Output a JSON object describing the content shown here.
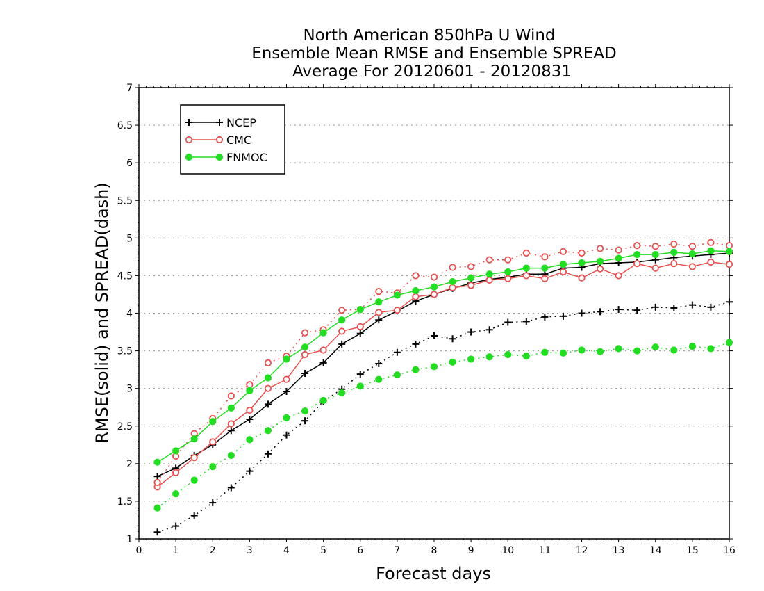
{
  "chart_data": {
    "type": "line",
    "title_lines": [
      "North American 850hPa U Wind",
      "Ensemble Mean RMSE and Ensemble SPREAD",
      "Average For 20120601 - 20120831"
    ],
    "xlabel": "Forecast days",
    "ylabel": "RMSE(solid) and SPREAD(dash)",
    "xlim": [
      0,
      16
    ],
    "ylim": [
      1,
      7
    ],
    "x_ticks": [
      0,
      1,
      2,
      3,
      4,
      5,
      6,
      7,
      8,
      9,
      10,
      11,
      12,
      13,
      14,
      15,
      16
    ],
    "y_ticks": [
      1,
      1.5,
      2,
      2.5,
      3,
      3.5,
      4,
      4.5,
      5,
      5.5,
      6,
      6.5,
      7
    ],
    "x_tick_labels": [
      "0",
      "1",
      "2",
      "3",
      "4",
      "5",
      "6",
      "7",
      "8",
      "9",
      "10",
      "11",
      "12",
      "13",
      "14",
      "15",
      "16"
    ],
    "y_tick_labels": [
      "1",
      "1.5",
      "2",
      "2.5",
      "3",
      "3.5",
      "4",
      "4.5",
      "5",
      "5.5",
      "6",
      "6.5",
      "7"
    ],
    "grid": true,
    "legend_position": "top-left",
    "x": [
      0.5,
      1,
      1.5,
      2,
      2.5,
      3,
      3.5,
      4,
      4.5,
      5,
      5.5,
      6,
      6.5,
      7,
      7.5,
      8,
      8.5,
      9,
      9.5,
      10,
      10.5,
      11,
      11.5,
      12,
      12.5,
      13,
      13.5,
      14,
      14.5,
      15,
      15.5,
      16
    ],
    "series": [
      {
        "name": "NCEP",
        "metric": "RMSE",
        "line_style": "solid",
        "marker": "plus",
        "color": "#000000",
        "values": [
          1.83,
          1.94,
          2.11,
          2.25,
          2.44,
          2.59,
          2.79,
          2.96,
          3.2,
          3.34,
          3.59,
          3.73,
          3.91,
          4.03,
          4.16,
          4.25,
          4.33,
          4.4,
          4.45,
          4.48,
          4.52,
          4.52,
          4.6,
          4.61,
          4.66,
          4.67,
          4.68,
          4.71,
          4.74,
          4.76,
          4.78,
          4.8
        ]
      },
      {
        "name": "NCEP",
        "metric": "SPREAD",
        "line_style": "dash",
        "marker": "plus",
        "color": "#000000",
        "values": [
          1.09,
          1.17,
          1.31,
          1.48,
          1.68,
          1.9,
          2.13,
          2.38,
          2.57,
          2.83,
          2.99,
          3.19,
          3.33,
          3.48,
          3.59,
          3.7,
          3.66,
          3.75,
          3.78,
          3.88,
          3.89,
          3.95,
          3.96,
          4.0,
          4.02,
          4.05,
          4.04,
          4.08,
          4.07,
          4.11,
          4.08,
          4.15
        ]
      },
      {
        "name": "CMC",
        "metric": "RMSE",
        "line_style": "solid",
        "marker": "circle-open",
        "color": "#e85050",
        "values": [
          1.69,
          1.88,
          2.08,
          2.29,
          2.53,
          2.71,
          3.0,
          3.12,
          3.45,
          3.51,
          3.76,
          3.82,
          4.01,
          4.04,
          4.22,
          4.25,
          4.34,
          4.37,
          4.44,
          4.46,
          4.5,
          4.46,
          4.55,
          4.47,
          4.59,
          4.5,
          4.66,
          4.6,
          4.66,
          4.62,
          4.68,
          4.65
        ]
      },
      {
        "name": "CMC",
        "metric": "SPREAD",
        "line_style": "dash",
        "marker": "circle-open",
        "color": "#e85050",
        "values": [
          1.75,
          2.1,
          2.4,
          2.6,
          2.9,
          3.05,
          3.34,
          3.43,
          3.74,
          3.78,
          4.04,
          4.05,
          4.29,
          4.27,
          4.5,
          4.48,
          4.61,
          4.62,
          4.71,
          4.71,
          4.8,
          4.75,
          4.82,
          4.8,
          4.86,
          4.84,
          4.9,
          4.89,
          4.92,
          4.89,
          4.94,
          4.9
        ]
      },
      {
        "name": "FNMOC",
        "metric": "RMSE",
        "line_style": "solid",
        "marker": "circle-filled",
        "color": "#22dd22",
        "values": [
          2.02,
          2.17,
          2.33,
          2.56,
          2.74,
          2.97,
          3.14,
          3.39,
          3.55,
          3.74,
          3.91,
          4.05,
          4.15,
          4.24,
          4.3,
          4.35,
          4.42,
          4.47,
          4.52,
          4.55,
          4.6,
          4.6,
          4.65,
          4.67,
          4.69,
          4.73,
          4.78,
          4.78,
          4.81,
          4.79,
          4.83,
          4.82
        ]
      },
      {
        "name": "FNMOC",
        "metric": "SPREAD",
        "line_style": "dash",
        "marker": "circle-filled",
        "color": "#22dd22",
        "values": [
          1.41,
          1.6,
          1.78,
          1.96,
          2.11,
          2.32,
          2.44,
          2.61,
          2.7,
          2.84,
          2.94,
          3.03,
          3.12,
          3.18,
          3.25,
          3.29,
          3.35,
          3.39,
          3.42,
          3.45,
          3.43,
          3.48,
          3.47,
          3.51,
          3.49,
          3.53,
          3.5,
          3.55,
          3.51,
          3.56,
          3.53,
          3.61
        ]
      }
    ],
    "legend": [
      {
        "label": "NCEP",
        "marker": "plus",
        "color": "#000000"
      },
      {
        "label": "CMC",
        "marker": "circle-open",
        "color": "#e85050"
      },
      {
        "label": "FNMOC",
        "marker": "circle-filled",
        "color": "#22dd22"
      }
    ]
  }
}
